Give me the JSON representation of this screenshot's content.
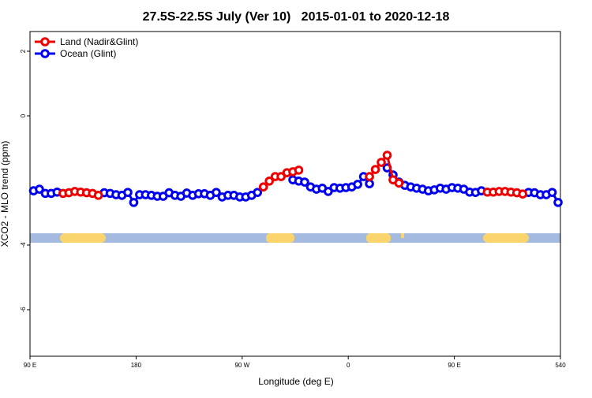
{
  "chart_data": {
    "type": "line",
    "title": "27.5S-22.5S July (Ver 10)   2015-01-01 to 2020-12-18",
    "x_label": "Longitude (deg E)",
    "y_label": "XCO2 - MLO trend (ppm)",
    "x": [
      93,
      98,
      103,
      108,
      113,
      118,
      123,
      128,
      133,
      138,
      143,
      148,
      153,
      158,
      163,
      168,
      173,
      178,
      183,
      188,
      193,
      198,
      203,
      208,
      213,
      218,
      223,
      228,
      233,
      238,
      243,
      248,
      253,
      258,
      263,
      268,
      273,
      278,
      283,
      288,
      293,
      298,
      303,
      308,
      313,
      318,
      323,
      328,
      333,
      338,
      343,
      348,
      353,
      358,
      363,
      368,
      373,
      378,
      383,
      388,
      393,
      398,
      403,
      408,
      413,
      418,
      423,
      428,
      433,
      438,
      443,
      448,
      453,
      458,
      463,
      468,
      473,
      478,
      483,
      488,
      493,
      498,
      503,
      508,
      513,
      518,
      523,
      528,
      533,
      538
    ],
    "series": [
      {
        "name": "Land (Nadir&Glint)",
        "color": "#ee0000",
        "values": [
          null,
          null,
          null,
          null,
          null,
          -2.4,
          -2.38,
          -2.34,
          -2.36,
          -2.38,
          -2.4,
          -2.46,
          null,
          null,
          null,
          null,
          null,
          null,
          null,
          null,
          null,
          null,
          null,
          null,
          null,
          null,
          null,
          null,
          null,
          null,
          null,
          null,
          null,
          null,
          null,
          null,
          null,
          null,
          null,
          -2.2,
          -2.02,
          -1.88,
          -1.88,
          -1.76,
          -1.73,
          -1.68,
          null,
          null,
          null,
          null,
          null,
          null,
          null,
          null,
          null,
          null,
          null,
          -1.88,
          -1.66,
          -1.44,
          -1.22,
          -1.98,
          -2.08,
          null,
          null,
          null,
          null,
          null,
          null,
          null,
          null,
          null,
          null,
          null,
          null,
          null,
          null,
          -2.36,
          -2.36,
          -2.34,
          -2.34,
          -2.36,
          -2.38,
          -2.42,
          null,
          null,
          null,
          null,
          null,
          null
        ]
      },
      {
        "name": "Ocean (Glint)",
        "color": "#0000ee",
        "values": [
          -2.32,
          -2.27,
          -2.4,
          -2.4,
          -2.36,
          null,
          null,
          null,
          null,
          null,
          null,
          null,
          -2.38,
          -2.4,
          -2.44,
          -2.46,
          -2.37,
          -2.68,
          -2.44,
          -2.44,
          -2.46,
          -2.49,
          -2.49,
          -2.38,
          -2.46,
          -2.49,
          -2.39,
          -2.46,
          -2.41,
          -2.41,
          -2.46,
          -2.37,
          -2.51,
          -2.46,
          -2.46,
          -2.51,
          -2.51,
          -2.46,
          -2.37,
          null,
          null,
          null,
          null,
          null,
          -1.98,
          -2.02,
          -2.05,
          -2.2,
          -2.27,
          -2.24,
          -2.34,
          -2.22,
          -2.24,
          -2.22,
          -2.2,
          -2.12,
          -1.88,
          -2.1,
          null,
          null,
          -1.61,
          -1.83,
          -2.05,
          -2.15,
          -2.2,
          -2.24,
          -2.27,
          -2.32,
          -2.29,
          -2.24,
          -2.27,
          -2.22,
          -2.24,
          -2.27,
          -2.36,
          -2.37,
          -2.32,
          null,
          null,
          null,
          null,
          null,
          null,
          null,
          -2.37,
          -2.38,
          -2.44,
          -2.44,
          -2.37,
          -2.68
        ]
      }
    ],
    "xlim": [
      90,
      540
    ],
    "ylim": [
      -7.44,
      2.61
    ],
    "xticks": [
      {
        "value": 90,
        "label": "90 E"
      },
      180,
      {
        "value": 270,
        "label": "90 W"
      },
      {
        "value": 360,
        "label": "0"
      },
      {
        "value": 450,
        "label": "90 E"
      },
      540
    ],
    "yticks": [
      2,
      0,
      -4,
      -6
    ],
    "legend": "top-left"
  }
}
